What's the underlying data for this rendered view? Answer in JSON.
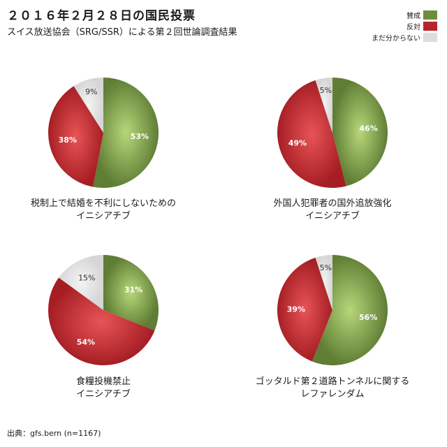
{
  "header": {
    "title": "２０１６年２月２８日の国民投票",
    "subtitle": "スイス放送協会（SRG/SSR）による第２回世論調査結果"
  },
  "legend": [
    {
      "label": "賛成",
      "color": "#6f8c3c"
    },
    {
      "label": "反対",
      "color": "#b5262c"
    },
    {
      "label": "まだ分からない",
      "color": "#dddddd"
    }
  ],
  "chart_data": [
    {
      "type": "pie",
      "title_line1": "税制上で結婚を不利にしないための",
      "title_line2": "イニシアチブ",
      "categories": [
        "賛成",
        "反対",
        "まだ分からない"
      ],
      "values": [
        53,
        38,
        9
      ],
      "labels": [
        "53%",
        "38%",
        "9%"
      ]
    },
    {
      "type": "pie",
      "title_line1": "外国人犯罪者の国外追放強化",
      "title_line2": "イニシアチブ",
      "categories": [
        "賛成",
        "反対",
        "まだ分からない"
      ],
      "values": [
        46,
        49,
        5
      ],
      "labels": [
        "46%",
        "49%",
        "5%"
      ]
    },
    {
      "type": "pie",
      "title_line1": "食糧投機禁止",
      "title_line2": "イニシアチブ",
      "categories": [
        "賛成",
        "反対",
        "まだ分からない"
      ],
      "values": [
        31,
        54,
        15
      ],
      "labels": [
        "31%",
        "54%",
        "15%"
      ]
    },
    {
      "type": "pie",
      "title_line1": "ゴッタルド第２道路トンネルに関する",
      "title_line2": "レファレンダム",
      "categories": [
        "賛成",
        "反対",
        "まだ分からない"
      ],
      "values": [
        56,
        39,
        5
      ],
      "labels": [
        "56%",
        "39%",
        "5%"
      ]
    }
  ],
  "source": "出典：gfs.bern (n=1167)"
}
